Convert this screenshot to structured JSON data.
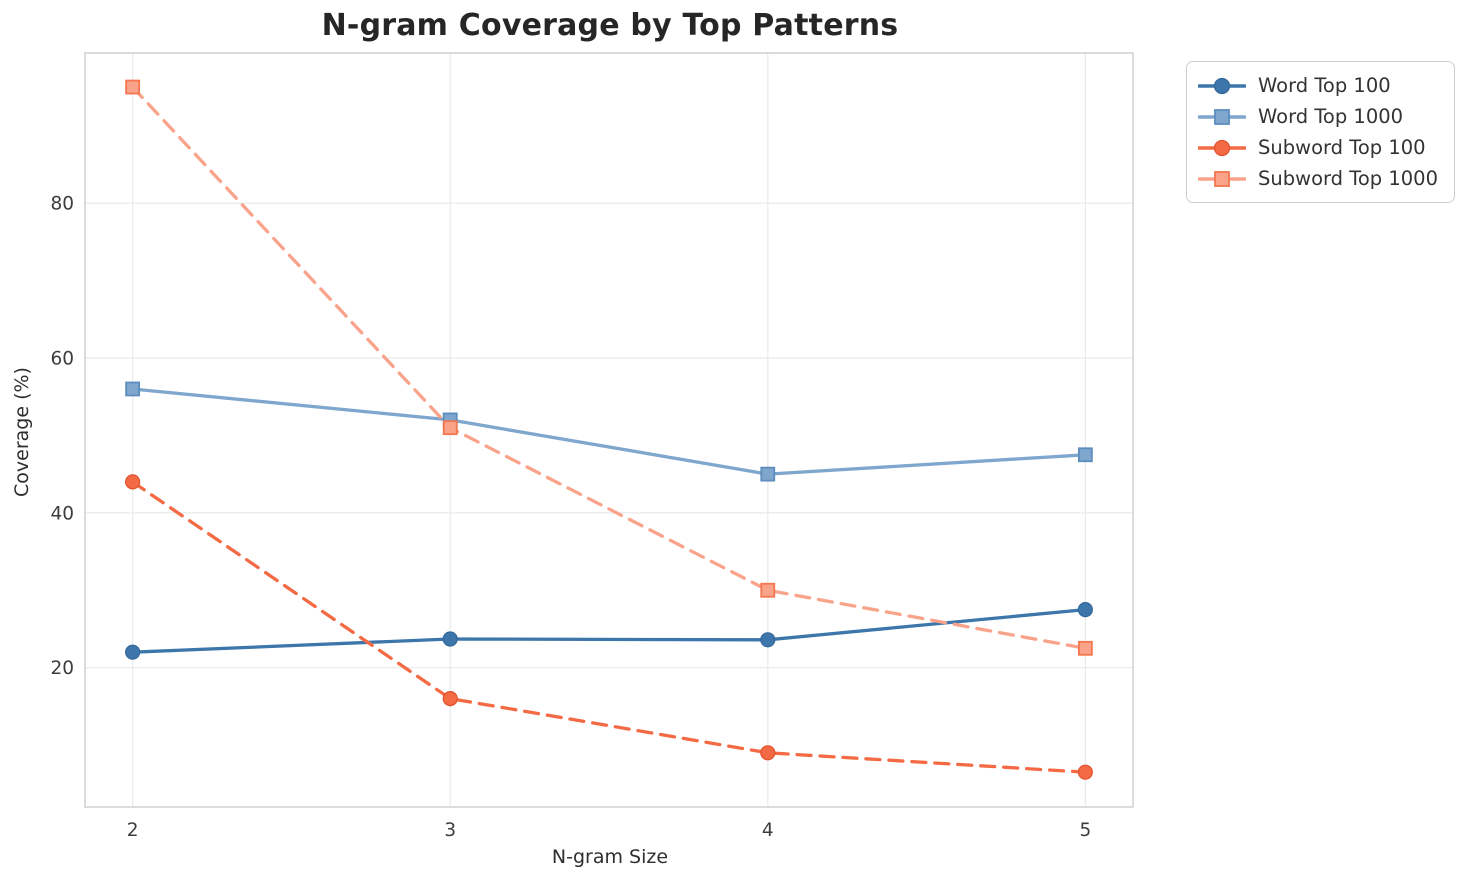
{
  "figure": {
    "background": "#ffffff",
    "grid_color": "#ebebeb",
    "spine_color": "#cccccc",
    "tick_label_color": "#3d3d3d",
    "title_color": "#262626"
  },
  "chart_data": {
    "type": "line",
    "title": "N-gram Coverage by Top Patterns",
    "xlabel": "N-gram Size",
    "ylabel": "Coverage (%)",
    "x": [
      2,
      3,
      4,
      5
    ],
    "x_tick_labels": [
      "2",
      "3",
      "4",
      "5"
    ],
    "y_ticks": [
      20,
      40,
      60,
      80
    ],
    "y_tick_labels": [
      "20",
      "40",
      "60",
      "80"
    ],
    "xlim": [
      1.85,
      5.15
    ],
    "ylim": [
      2.0,
      99.4
    ],
    "grid": true,
    "legend_position": "outside-top-right",
    "series": [
      {
        "name": "Word Top 100",
        "values": [
          22,
          23.7,
          23.6,
          27.5
        ],
        "color": "#3d76ab",
        "edge_color": "#34679a",
        "line_style": "solid",
        "marker": "circle"
      },
      {
        "name": "Word Top 1000",
        "values": [
          56,
          52,
          45,
          47.5
        ],
        "color": "#7fa6cd",
        "edge_color": "#5c8dbd",
        "line_style": "solid",
        "marker": "square"
      },
      {
        "name": "Subword Top 100",
        "values": [
          44,
          16,
          9,
          6.5
        ],
        "color": "#f46a45",
        "edge_color": "#e0522c",
        "line_style": "dashed",
        "marker": "circle"
      },
      {
        "name": "Subword Top 1000",
        "values": [
          95,
          51,
          30,
          22.5
        ],
        "color": "#f9a38b",
        "edge_color": "#f4764f",
        "line_style": "dashed",
        "marker": "square"
      }
    ]
  }
}
